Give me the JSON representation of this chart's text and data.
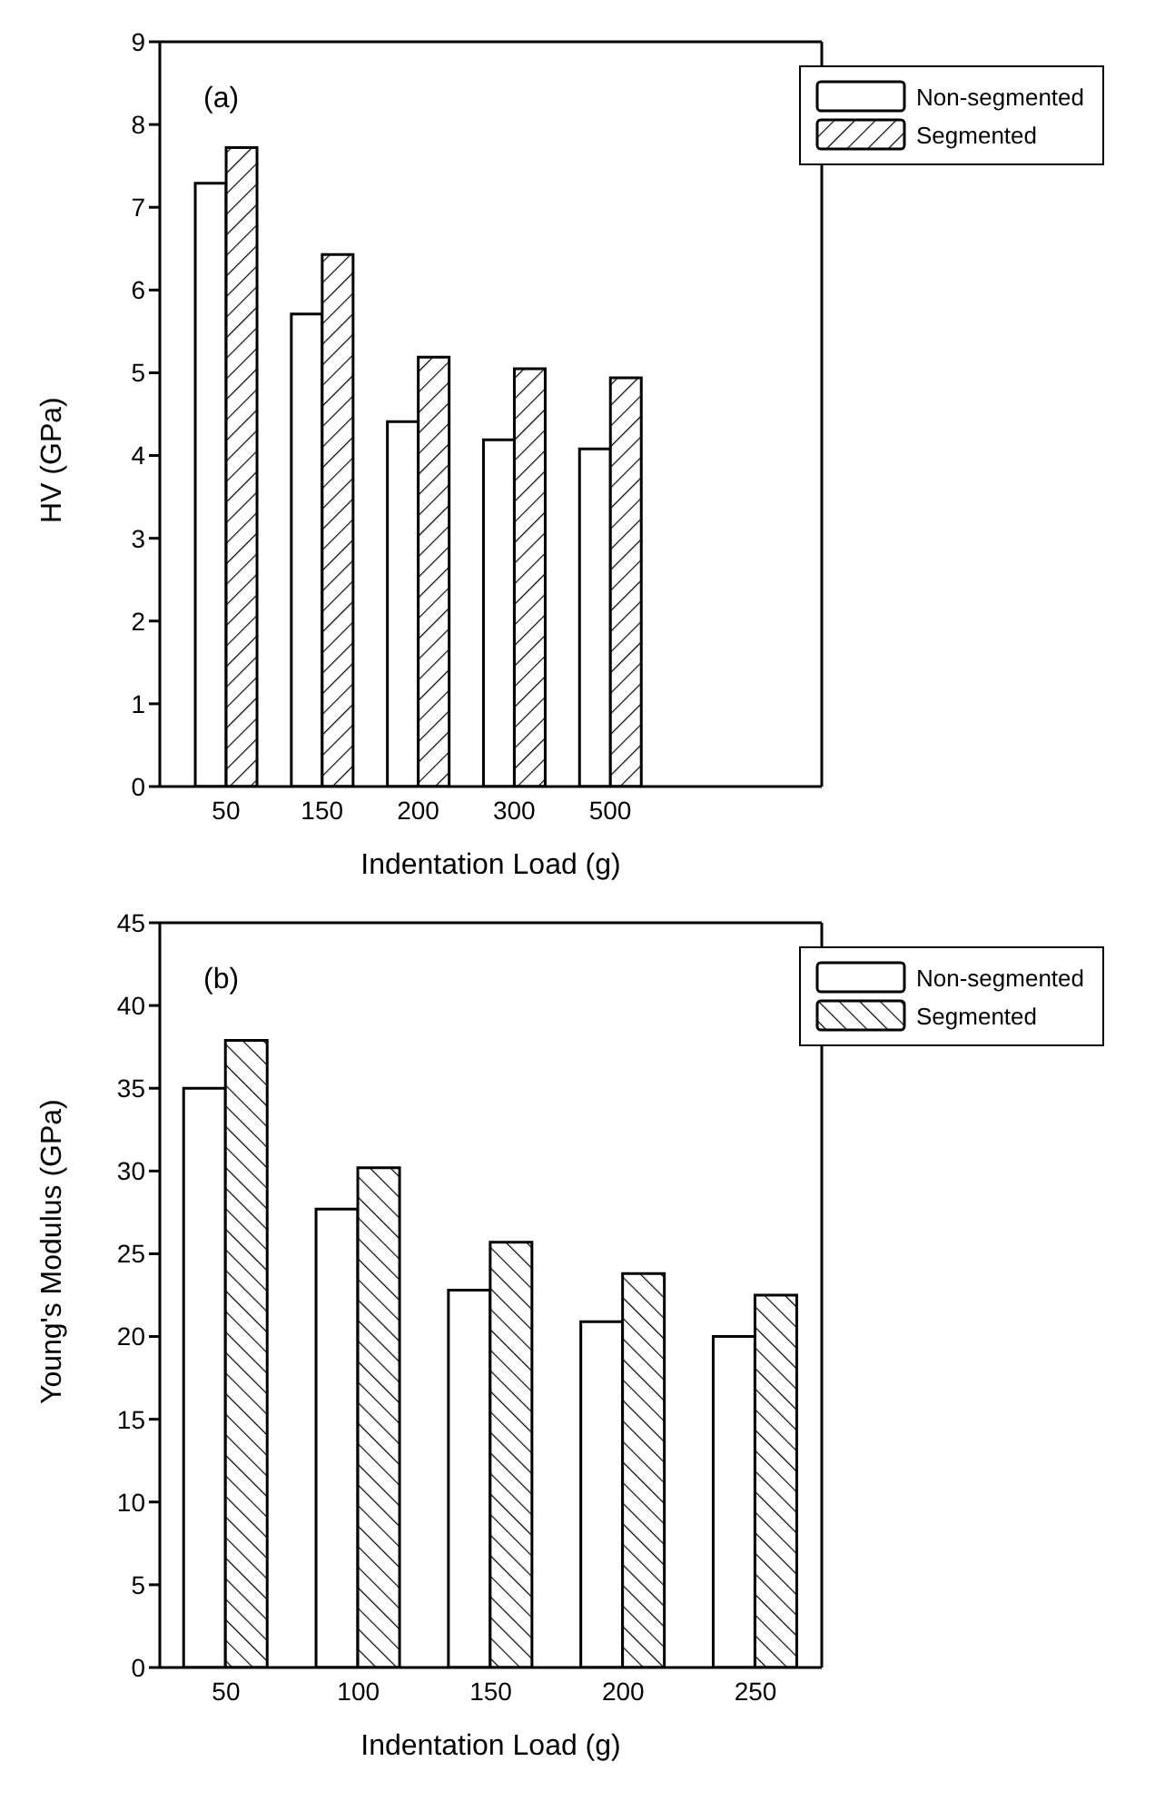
{
  "chart_data": [
    {
      "type": "bar",
      "annotations": [
        "(a)"
      ],
      "xlabel": "Indentation Load (g)",
      "ylabel": "HV (GPa)",
      "categories": [
        "50",
        "150",
        "200",
        "300",
        "500"
      ],
      "series": [
        {
          "name": "Non-segmented",
          "color": "#ffffff",
          "values": [
            7.29,
            5.71,
            4.41,
            4.19,
            4.08
          ]
        },
        {
          "name": "Segmented",
          "color": "#000000",
          "values": [
            7.72,
            6.43,
            5.19,
            5.05,
            4.94
          ]
        }
      ],
      "ylim": [
        0,
        9
      ],
      "yticks": [
        0,
        1,
        2,
        3,
        4,
        5,
        6,
        7,
        8,
        9
      ],
      "grid": false,
      "legend": "top right"
    },
    {
      "type": "bar",
      "annotations": [
        "(b)"
      ],
      "xlabel": "Indentation Load (g)",
      "ylabel": "Young's Modulus (GPa)",
      "categories": [
        "50",
        "100",
        "150",
        "200",
        "250"
      ],
      "series": [
        {
          "name": "Non-segmented",
          "color": "#ffffff",
          "values": [
            35.0,
            27.7,
            22.8,
            20.9,
            20.0
          ]
        },
        {
          "name": "Segmented",
          "color": "#000000",
          "values": [
            37.9,
            30.2,
            25.7,
            23.8,
            22.5
          ]
        }
      ],
      "ylim": [
        0,
        45
      ],
      "yticks": [
        0,
        5,
        10,
        15,
        20,
        25,
        30,
        35,
        40,
        45
      ],
      "grid": false,
      "legend": "top right"
    }
  ]
}
